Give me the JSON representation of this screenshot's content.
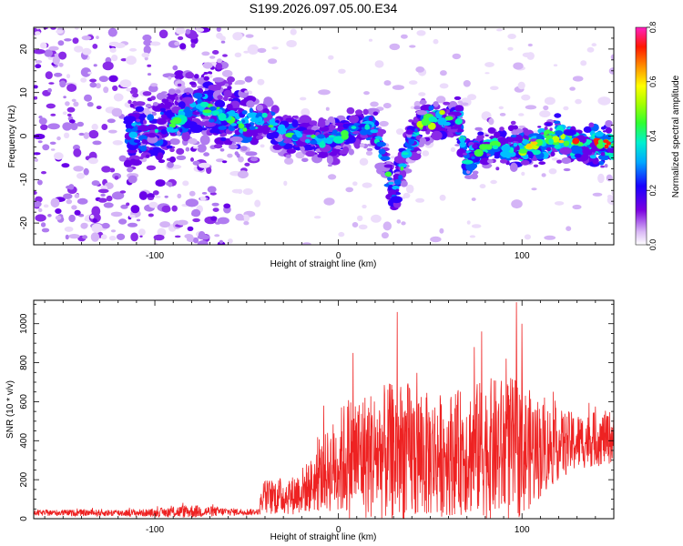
{
  "title": "S199.2026.097.05.00.E34",
  "chart_data": [
    {
      "type": "heatmap",
      "xlabel": "Height of straight line (km)",
      "ylabel": "Frequency (Hz)",
      "xlim": [
        -166,
        150
      ],
      "ylim": [
        -25,
        25
      ],
      "xticks": [
        -100,
        0,
        100
      ],
      "yticks": [
        -20,
        -10,
        0,
        10,
        20
      ],
      "colorbar": {
        "label": "Normalized spectral amplitude",
        "range": [
          0,
          0.8
        ],
        "ticks": [
          0.0,
          0.2,
          0.4,
          0.6,
          0.8
        ]
      },
      "ridge": [
        {
          "x": -100,
          "y": 1
        },
        {
          "x": -90,
          "y": 3
        },
        {
          "x": -80,
          "y": 6
        },
        {
          "x": -70,
          "y": 7
        },
        {
          "x": -60,
          "y": 4
        },
        {
          "x": -50,
          "y": 2
        },
        {
          "x": -40,
          "y": 4
        },
        {
          "x": -35,
          "y": 2
        },
        {
          "x": -25,
          "y": 0
        },
        {
          "x": -10,
          "y": -1
        },
        {
          "x": 0,
          "y": 0
        },
        {
          "x": 10,
          "y": 2
        },
        {
          "x": 20,
          "y": 1
        },
        {
          "x": 25,
          "y": -5
        },
        {
          "x": 30,
          "y": -14
        },
        {
          "x": 35,
          "y": -6
        },
        {
          "x": 45,
          "y": 3
        },
        {
          "x": 55,
          "y": 4
        },
        {
          "x": 65,
          "y": 4
        },
        {
          "x": 70,
          "y": -6
        },
        {
          "x": 80,
          "y": -2
        },
        {
          "x": 100,
          "y": -3
        },
        {
          "x": 120,
          "y": 0
        },
        {
          "x": 130,
          "y": -2
        },
        {
          "x": 150,
          "y": -2
        }
      ]
    },
    {
      "type": "line",
      "xlabel": "Height of straight line (km)",
      "ylabel": "SNR (10 * v/v)",
      "xlim": [
        -166,
        150
      ],
      "ylim": [
        0,
        1120
      ],
      "xticks": [
        -100,
        0,
        100
      ],
      "yticks": [
        0,
        200,
        400,
        600,
        800,
        1000
      ],
      "series": [
        {
          "name": "SNR",
          "color": "#ee2222",
          "envelope": [
            {
              "x": -166,
              "base": 30,
              "amp": 15
            },
            {
              "x": -100,
              "base": 30,
              "amp": 20
            },
            {
              "x": -90,
              "base": 35,
              "amp": 30
            },
            {
              "x": -80,
              "base": 38,
              "amp": 35
            },
            {
              "x": -60,
              "base": 35,
              "amp": 20
            },
            {
              "x": -43,
              "base": 35,
              "amp": 15
            },
            {
              "x": -42,
              "base": 110,
              "amp": 90
            },
            {
              "x": -25,
              "base": 120,
              "amp": 100
            },
            {
              "x": -15,
              "base": 170,
              "amp": 140
            },
            {
              "x": -5,
              "base": 250,
              "amp": 220
            },
            {
              "x": 5,
              "base": 320,
              "amp": 320
            },
            {
              "x": 20,
              "base": 330,
              "amp": 340
            },
            {
              "x": 35,
              "base": 340,
              "amp": 380
            },
            {
              "x": 50,
              "base": 320,
              "amp": 320
            },
            {
              "x": 65,
              "base": 340,
              "amp": 320
            },
            {
              "x": 80,
              "base": 360,
              "amp": 360
            },
            {
              "x": 95,
              "base": 350,
              "amp": 380
            },
            {
              "x": 110,
              "base": 360,
              "amp": 260
            },
            {
              "x": 120,
              "base": 380,
              "amp": 180
            },
            {
              "x": 135,
              "base": 400,
              "amp": 140
            },
            {
              "x": 150,
              "base": 420,
              "amp": 140
            }
          ],
          "peaks": [
            {
              "x": 8,
              "y": 850
            },
            {
              "x": 32,
              "y": 1060
            },
            {
              "x": 74,
              "y": 880
            },
            {
              "x": 78,
              "y": 960
            },
            {
              "x": 97,
              "y": 1110
            },
            {
              "x": 100,
              "y": 1000
            }
          ]
        }
      ]
    }
  ]
}
